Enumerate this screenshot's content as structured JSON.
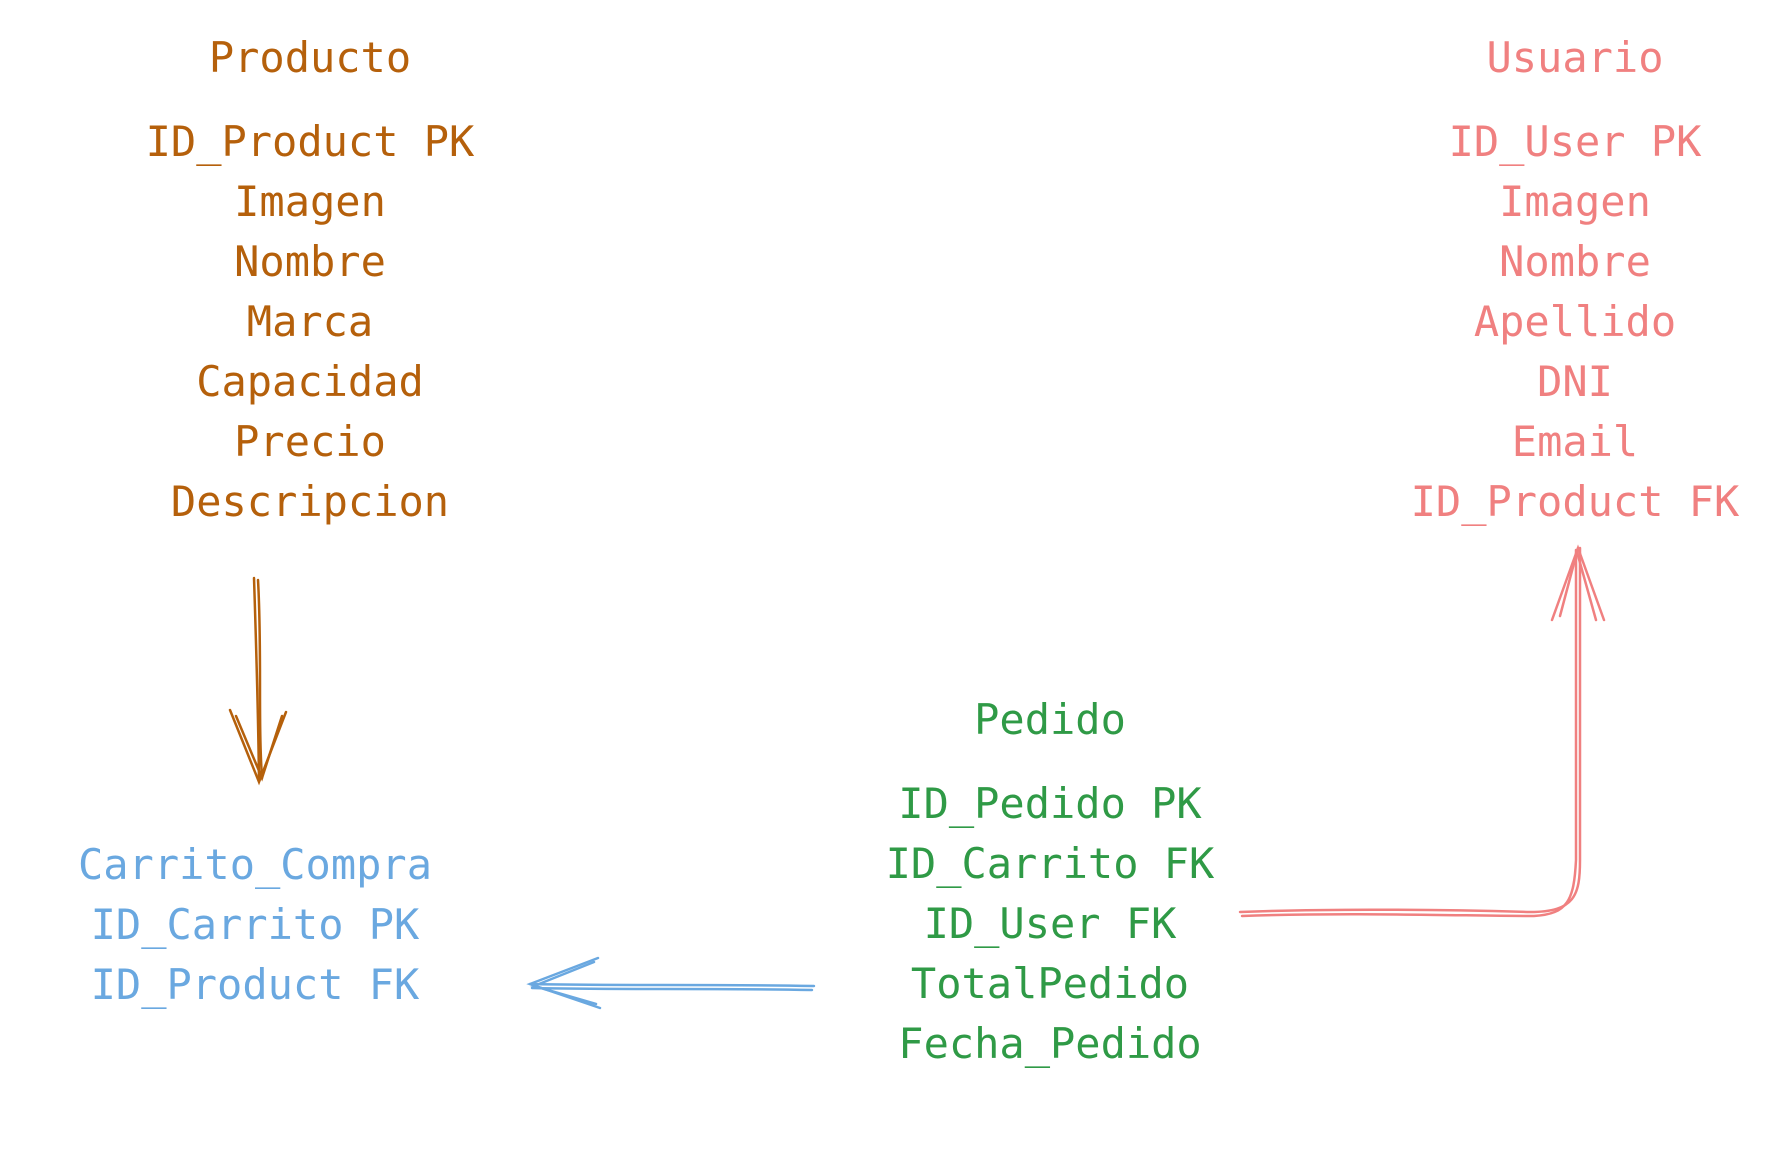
{
  "entities": {
    "producto": {
      "title": "Producto",
      "fields": [
        "ID_Product PK",
        "Imagen",
        "Nombre",
        "Marca",
        "Capacidad",
        "Precio",
        "Descripcion"
      ],
      "color": "#b5600b"
    },
    "usuario": {
      "title": "Usuario",
      "fields": [
        "ID_User PK",
        "Imagen",
        "Nombre",
        "Apellido",
        "DNI",
        "Email",
        "ID_Product FK"
      ],
      "color": "#f08080"
    },
    "pedido": {
      "title": "Pedido",
      "fields": [
        "ID_Pedido PK",
        "ID_Carrito FK",
        "ID_User FK",
        "TotalPedido",
        "Fecha_Pedido"
      ],
      "color": "#2f9a46"
    },
    "carrito": {
      "title": "Carrito_Compra",
      "fields": [
        "ID_Carrito PK",
        "ID_Product FK"
      ],
      "color": "#6aa8e0"
    }
  },
  "relations": [
    {
      "from": "producto",
      "to": "carrito",
      "color": "#b5600b"
    },
    {
      "from": "pedido",
      "to": "usuario",
      "color": "#f08080"
    },
    {
      "from": "pedido",
      "to": "carrito",
      "color": "#6aa8e0"
    }
  ]
}
